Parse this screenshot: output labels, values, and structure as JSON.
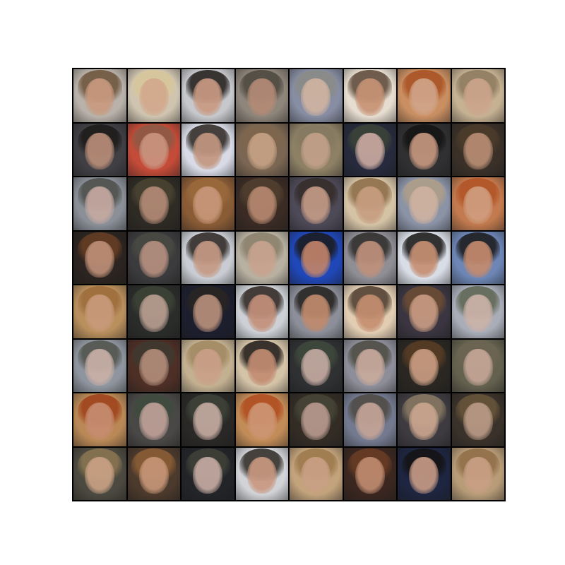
{
  "image": {
    "description_free": true,
    "grid": {
      "rows": 8,
      "cols": 8
    },
    "tiles": [
      {
        "bg": "#b9b2aa",
        "hair": "#6b5138",
        "skin": "#c89a7e"
      },
      {
        "bg": "#cfc4b0",
        "hair": "#d8c79a",
        "skin": "#d2a88c"
      },
      {
        "bg": "#c7c8cc",
        "hair": "#1e1a17",
        "skin": "#c99a83"
      },
      {
        "bg": "#8e857b",
        "hair": "#4b463d",
        "skin": "#b48b76"
      },
      {
        "bg": "#878da2",
        "hair": "#8a8b85",
        "skin": "#d0b3a1"
      },
      {
        "bg": "#e6dccf",
        "hair": "#5a4636",
        "skin": "#c79375"
      },
      {
        "bg": "#c98f62",
        "hair": "#a74f21",
        "skin": "#d1a489"
      },
      {
        "bg": "#c6b293",
        "hair": "#8c785c",
        "skin": "#cda58b"
      },
      {
        "bg": "#403f44",
        "hair": "#1c1918",
        "skin": "#b88d78"
      },
      {
        "bg": "#c44b38",
        "hair": "#8a5a46",
        "skin": "#c9947f"
      },
      {
        "bg": "#d8dbe6",
        "hair": "#2b241f",
        "skin": "#c29780"
      },
      {
        "bg": "#7a6652",
        "hair": "#7e654d",
        "skin": "#c6a184"
      },
      {
        "bg": "#8d8065",
        "hair": "#857a61",
        "skin": "#c3a089"
      },
      {
        "bg": "#262a3c",
        "hair": "#3c4438",
        "skin": "#c9a9a1"
      },
      {
        "bg": "#303032",
        "hair": "#141312",
        "skin": "#c6977f"
      },
      {
        "bg": "#3a3028",
        "hair": "#4c3c2a",
        "skin": "#b88d73"
      },
      {
        "bg": "#8a8f98",
        "hair": "#4a4d48",
        "skin": "#c5a9a1"
      },
      {
        "bg": "#2e2a24",
        "hair": "#4b4432",
        "skin": "#b28a75"
      },
      {
        "bg": "#8a5c36",
        "hair": "#9a6a3c",
        "skin": "#c89679"
      },
      {
        "bg": "#3a2b24",
        "hair": "#52402f",
        "skin": "#b6876f"
      },
      {
        "bg": "#4d4957",
        "hair": "#332b28",
        "skin": "#c39a86"
      },
      {
        "bg": "#d5c3a6",
        "hair": "#8a6a46",
        "skin": "#c79d80"
      },
      {
        "bg": "#8b93a6",
        "hair": "#b19f86",
        "skin": "#cfb2a1"
      },
      {
        "bg": "#c27a4e",
        "hair": "#b05225",
        "skin": "#cf9d7f"
      },
      {
        "bg": "#2b2420",
        "hair": "#6a3f24",
        "skin": "#bd8f77"
      },
      {
        "bg": "#3b3a3c",
        "hair": "#4a4a43",
        "skin": "#b58f7f"
      },
      {
        "bg": "#c9ccd2",
        "hair": "#2a2420",
        "skin": "#c59a85"
      },
      {
        "bg": "#b8b1a2",
        "hair": "#8a7f6a",
        "skin": "#c7a38f"
      },
      {
        "bg": "#1f47b8",
        "hair": "#1c1a1a",
        "skin": "#c08369"
      },
      {
        "bg": "#8f8e95",
        "hair": "#2e2b29",
        "skin": "#bf917c"
      },
      {
        "bg": "#d9dde6",
        "hair": "#151312",
        "skin": "#c58f72"
      },
      {
        "bg": "#6d86b5",
        "hair": "#1a1818",
        "skin": "#c48a6d"
      },
      {
        "bg": "#b98f5d",
        "hair": "#9c6b3a",
        "skin": "#c99a7b"
      },
      {
        "bg": "#2a2c2a",
        "hair": "#3e4436",
        "skin": "#b89d90"
      },
      {
        "bg": "#1c1e2e",
        "hair": "#2a2522",
        "skin": "#b88f7b"
      },
      {
        "bg": "#cdd1d6",
        "hair": "#2b211c",
        "skin": "#c3907a"
      },
      {
        "bg": "#8c8f99",
        "hair": "#221e1c",
        "skin": "#c08a6c"
      },
      {
        "bg": "#e2cdb3",
        "hair": "#4a3a2b",
        "skin": "#c58e70"
      },
      {
        "bg": "#3a3540",
        "hair": "#6e4d33",
        "skin": "#c89b82"
      },
      {
        "bg": "#a9adb8",
        "hair": "#5d6451",
        "skin": "#ccb2a8"
      },
      {
        "bg": "#8f959f",
        "hair": "#4e5149",
        "skin": "#c9b0a7"
      },
      {
        "bg": "#4d2f26",
        "hair": "#3e3a30",
        "skin": "#b28c7a"
      },
      {
        "bg": "#c3b091",
        "hair": "#a08860",
        "skin": "#caa088"
      },
      {
        "bg": "#d4c3a7",
        "hair": "#1e1816",
        "skin": "#c28c72"
      },
      {
        "bg": "#2f3032",
        "hair": "#3f4a3c",
        "skin": "#c4aaa1"
      },
      {
        "bg": "#8d8e99",
        "hair": "#4b4a40",
        "skin": "#c8aa9c"
      },
      {
        "bg": "#2a2722",
        "hair": "#5a3d25",
        "skin": "#c89c81"
      },
      {
        "bg": "#64614f",
        "hair": "#6d6552",
        "skin": "#c6a697"
      },
      {
        "bg": "#b98856",
        "hair": "#9e3f18",
        "skin": "#c68c70"
      },
      {
        "bg": "#4a4846",
        "hair": "#3f4a3e",
        "skin": "#bfa198"
      },
      {
        "bg": "#292826",
        "hair": "#3e4339",
        "skin": "#c4aaa0"
      },
      {
        "bg": "#c28c58",
        "hair": "#b04a1d",
        "skin": "#cd9674"
      },
      {
        "bg": "#322c24",
        "hair": "#474638",
        "skin": "#b8998e"
      },
      {
        "bg": "#737a8f",
        "hair": "#4d4842",
        "skin": "#c5a497"
      },
      {
        "bg": "#3e3b40",
        "hair": "#8b7b63",
        "skin": "#c9a58f"
      },
      {
        "bg": "#3a322a",
        "hair": "#6a563b",
        "skin": "#b99a86"
      },
      {
        "bg": "#4c4a40",
        "hair": "#8d7752",
        "skin": "#c9a184"
      },
      {
        "bg": "#4c3a2c",
        "hair": "#8e6035",
        "skin": "#c69577"
      },
      {
        "bg": "#222428",
        "hair": "#404338",
        "skin": "#c5aaa2"
      },
      {
        "bg": "#d1d3d7",
        "hair": "#2c2722",
        "skin": "#c89880"
      },
      {
        "bg": "#c2a37c",
        "hair": "#9b764a",
        "skin": "#c9a084"
      },
      {
        "bg": "#3b2720",
        "hair": "#6b3d24",
        "skin": "#bf8b6f"
      },
      {
        "bg": "#1d2540",
        "hair": "#141212",
        "skin": "#c69a86"
      },
      {
        "bg": "#b89c78",
        "hair": "#8d6c45",
        "skin": "#c99f84"
      }
    ]
  }
}
